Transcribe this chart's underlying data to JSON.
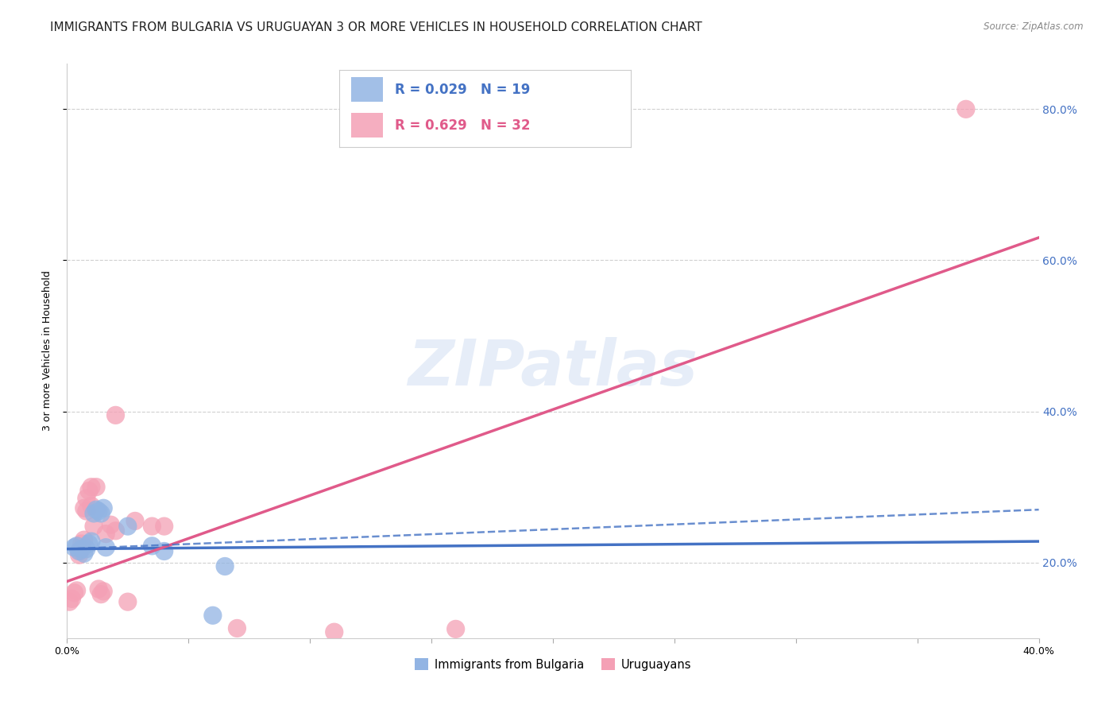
{
  "title": "IMMIGRANTS FROM BULGARIA VS URUGUAYAN 3 OR MORE VEHICLES IN HOUSEHOLD CORRELATION CHART",
  "source": "Source: ZipAtlas.com",
  "ylabel": "3 or more Vehicles in Household",
  "xlim": [
    0.0,
    0.4
  ],
  "ylim": [
    0.1,
    0.86
  ],
  "watermark": "ZIPatlas",
  "legend1_r": "0.029",
  "legend1_n": "19",
  "legend2_r": "0.629",
  "legend2_n": "32",
  "blue_color": "#92b4e3",
  "pink_color": "#f4a0b5",
  "blue_line_color": "#4472c4",
  "pink_line_color": "#e05a8a",
  "grid_color": "#d0d0d0",
  "bg_color": "#ffffff",
  "scatter_blue": [
    [
      0.003,
      0.22
    ],
    [
      0.004,
      0.222
    ],
    [
      0.005,
      0.215
    ],
    [
      0.006,
      0.218
    ],
    [
      0.007,
      0.212
    ],
    [
      0.008,
      0.218
    ],
    [
      0.009,
      0.225
    ],
    [
      0.01,
      0.228
    ],
    [
      0.011,
      0.265
    ],
    [
      0.012,
      0.27
    ],
    [
      0.013,
      0.268
    ],
    [
      0.014,
      0.265
    ],
    [
      0.015,
      0.272
    ],
    [
      0.016,
      0.22
    ],
    [
      0.025,
      0.248
    ],
    [
      0.035,
      0.222
    ],
    [
      0.04,
      0.215
    ],
    [
      0.06,
      0.13
    ],
    [
      0.065,
      0.195
    ]
  ],
  "scatter_pink": [
    [
      0.001,
      0.148
    ],
    [
      0.002,
      0.152
    ],
    [
      0.003,
      0.16
    ],
    [
      0.004,
      0.163
    ],
    [
      0.005,
      0.215
    ],
    [
      0.005,
      0.21
    ],
    [
      0.006,
      0.218
    ],
    [
      0.006,
      0.225
    ],
    [
      0.007,
      0.23
    ],
    [
      0.007,
      0.272
    ],
    [
      0.008,
      0.268
    ],
    [
      0.008,
      0.285
    ],
    [
      0.009,
      0.295
    ],
    [
      0.01,
      0.275
    ],
    [
      0.01,
      0.3
    ],
    [
      0.011,
      0.248
    ],
    [
      0.012,
      0.3
    ],
    [
      0.013,
      0.165
    ],
    [
      0.014,
      0.158
    ],
    [
      0.015,
      0.162
    ],
    [
      0.016,
      0.238
    ],
    [
      0.018,
      0.25
    ],
    [
      0.02,
      0.242
    ],
    [
      0.02,
      0.395
    ],
    [
      0.025,
      0.148
    ],
    [
      0.028,
      0.255
    ],
    [
      0.035,
      0.248
    ],
    [
      0.04,
      0.248
    ],
    [
      0.07,
      0.113
    ],
    [
      0.11,
      0.108
    ],
    [
      0.16,
      0.112
    ],
    [
      0.37,
      0.8
    ]
  ],
  "blue_trend": [
    0.0,
    0.4,
    0.218,
    0.228
  ],
  "pink_trend": [
    0.0,
    0.4,
    0.175,
    0.63
  ],
  "blue_dashed": [
    0.0,
    0.4,
    0.218,
    0.27
  ],
  "title_fontsize": 11,
  "axis_label_fontsize": 9,
  "tick_fontsize": 9,
  "legend_fontsize": 12
}
